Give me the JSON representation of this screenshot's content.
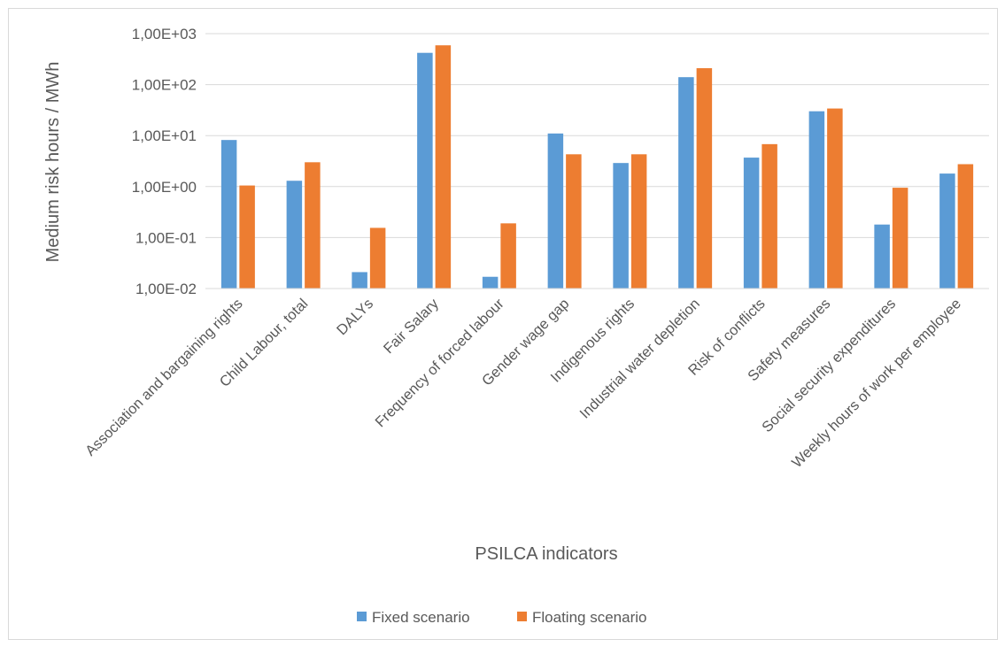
{
  "chart_data": {
    "type": "bar",
    "title": "",
    "xlabel": "PSILCA indicators",
    "ylabel": "Medium risk hours / MWh",
    "yscale": "log",
    "ylim": [
      0.01,
      1000
    ],
    "yticks": [
      {
        "value": 0.01,
        "label": "1,00E-02"
      },
      {
        "value": 0.1,
        "label": "1,00E-01"
      },
      {
        "value": 1,
        "label": "1,00E+00"
      },
      {
        "value": 10,
        "label": "1,00E+01"
      },
      {
        "value": 100,
        "label": "1,00E+02"
      },
      {
        "value": 1000,
        "label": "1,00E+03"
      }
    ],
    "grid": true,
    "legend_position": "bottom",
    "categories": [
      "Association and bargaining rights",
      "Child Labour, total",
      "DALYs",
      "Fair Salary",
      "Frequency of forced labour",
      "Gender wage gap",
      "Indigenous rights",
      "Industrial water depletion",
      "Risk of conflicts",
      "Safety measures",
      "Social security expenditures",
      "Weekly hours of work per employee"
    ],
    "series": [
      {
        "name": "Fixed scenario",
        "color": "#5b9bd5",
        "values": [
          8.2,
          1.3,
          0.021,
          420,
          0.017,
          11,
          2.9,
          140,
          3.7,
          30,
          0.18,
          1.8
        ]
      },
      {
        "name": "Floating scenario",
        "color": "#ed7d31",
        "values": [
          1.05,
          3.0,
          0.155,
          590,
          0.19,
          4.3,
          4.3,
          210,
          6.8,
          34,
          0.95,
          2.75
        ]
      }
    ]
  }
}
